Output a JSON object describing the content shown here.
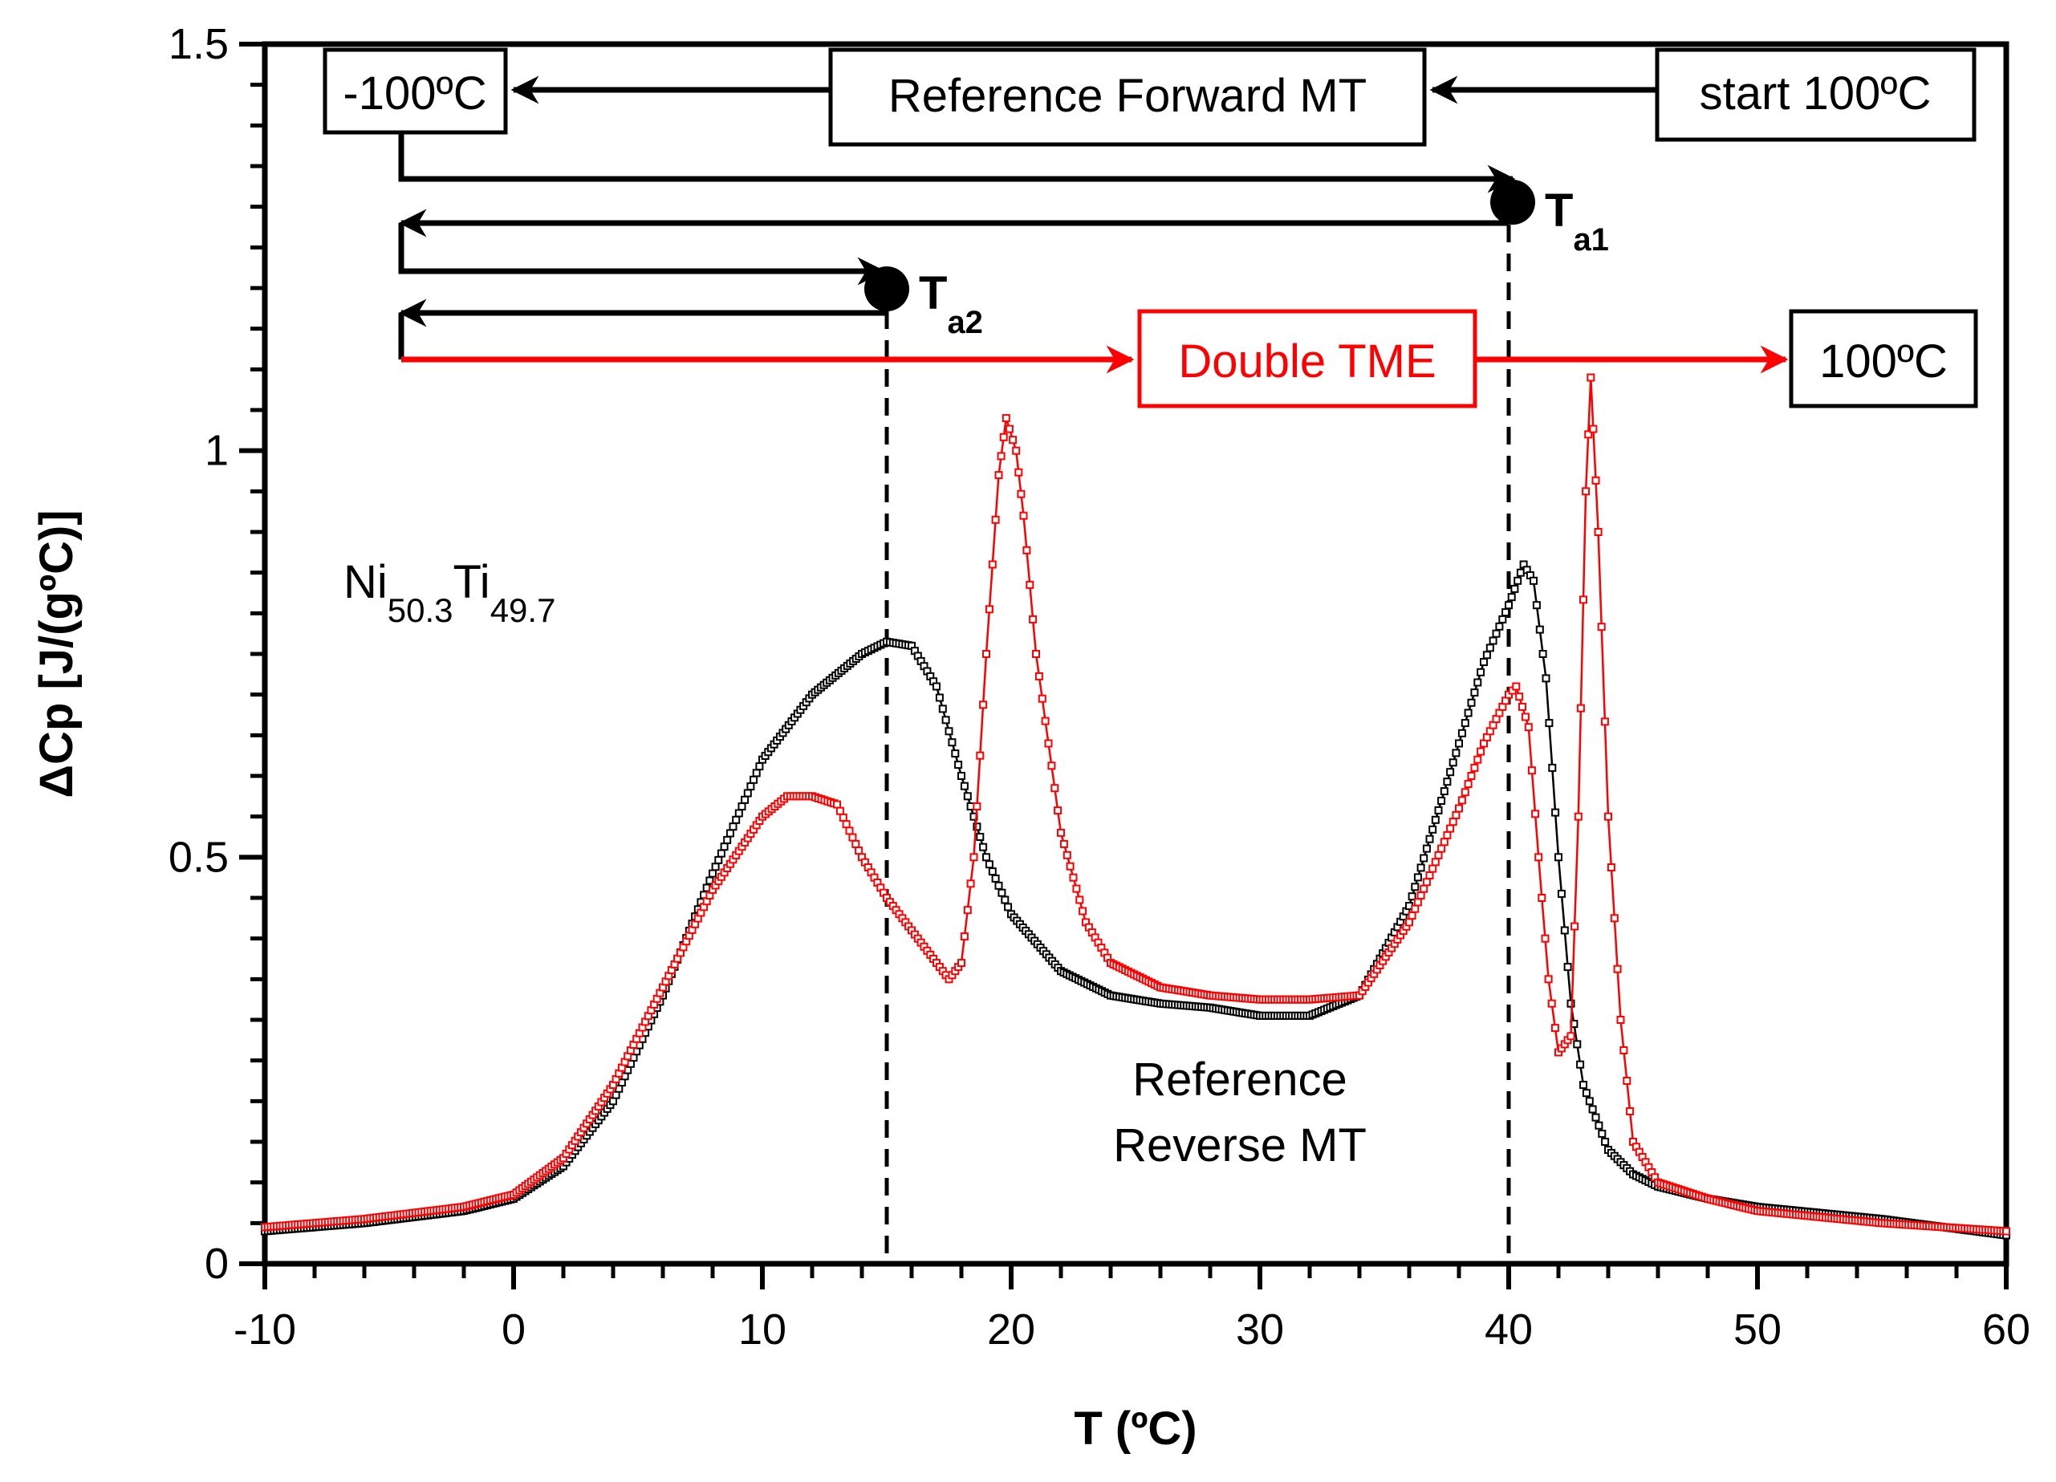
{
  "chart_data": {
    "type": "line",
    "xlabel": "T (ºC)",
    "ylabel": "ΔCp [J/(gºC)]",
    "xlim": [
      -10,
      60
    ],
    "ylim": [
      0,
      1.5
    ],
    "x_ticks": [
      -10,
      0,
      10,
      20,
      30,
      40,
      50,
      60
    ],
    "x_tick_labels": [
      "-10",
      "0",
      "10",
      "20",
      "30",
      "40",
      "50",
      "60"
    ],
    "y_ticks": [
      0,
      0.5,
      1,
      1.5
    ],
    "y_tick_labels": [
      "0",
      "0.5",
      "1",
      "1.5"
    ],
    "series": [
      {
        "name": "Reference Reverse MT",
        "color": "#000000",
        "marker": "square",
        "x": [
          -10,
          -6,
          -2,
          0,
          2,
          4,
          6,
          8,
          10,
          12,
          14,
          15,
          16,
          17,
          18,
          19,
          20,
          22,
          24,
          26,
          28,
          30,
          32,
          34,
          36,
          38,
          39,
          40,
          40.6,
          41,
          41.5,
          42,
          42.5,
          43,
          44,
          45,
          46,
          48,
          50,
          55,
          60
        ],
        "y": [
          0.04,
          0.05,
          0.065,
          0.08,
          0.12,
          0.2,
          0.33,
          0.48,
          0.62,
          0.7,
          0.75,
          0.765,
          0.76,
          0.71,
          0.6,
          0.5,
          0.43,
          0.36,
          0.33,
          0.32,
          0.315,
          0.305,
          0.305,
          0.33,
          0.44,
          0.64,
          0.74,
          0.81,
          0.86,
          0.84,
          0.72,
          0.5,
          0.32,
          0.22,
          0.14,
          0.11,
          0.095,
          0.08,
          0.07,
          0.055,
          0.035
        ]
      },
      {
        "name": "Double TME",
        "color": "#ff0000",
        "marker": "square",
        "x": [
          -10,
          -6,
          -2,
          0,
          2,
          4,
          6,
          8,
          10,
          11,
          12,
          13,
          14,
          15,
          16,
          17,
          17.5,
          18,
          18.5,
          19,
          19.5,
          19.8,
          20.2,
          20.5,
          21,
          22,
          23,
          24,
          26,
          28,
          30,
          32,
          34,
          36,
          38,
          39,
          40,
          40.3,
          40.8,
          41.2,
          41.6,
          42,
          42.5,
          42.8,
          43.1,
          43.3,
          43.6,
          44,
          44.5,
          45,
          46,
          48,
          50,
          55,
          60
        ],
        "y": [
          0.045,
          0.055,
          0.07,
          0.085,
          0.13,
          0.22,
          0.34,
          0.46,
          0.55,
          0.575,
          0.575,
          0.565,
          0.5,
          0.45,
          0.41,
          0.37,
          0.35,
          0.37,
          0.5,
          0.75,
          0.97,
          1.04,
          1.0,
          0.92,
          0.75,
          0.53,
          0.42,
          0.37,
          0.34,
          0.33,
          0.325,
          0.325,
          0.33,
          0.42,
          0.56,
          0.64,
          0.7,
          0.71,
          0.66,
          0.5,
          0.35,
          0.26,
          0.28,
          0.55,
          0.95,
          1.09,
          0.9,
          0.55,
          0.3,
          0.15,
          0.1,
          0.08,
          0.065,
          0.05,
          0.04
        ]
      }
    ],
    "vertical_markers": [
      {
        "name": "Ta2",
        "x": 15
      },
      {
        "name": "Ta1",
        "x": 40
      }
    ],
    "annotations": {
      "composition": {
        "base1": "Ni",
        "sub1": "50.3",
        "base2": "Ti",
        "sub2": "49.7"
      },
      "reference_reverse": [
        "Reference",
        "Reverse MT"
      ],
      "boxes": {
        "minus100": "-100ºC",
        "ref_forward": "Reference Forward MT",
        "start": "start 100ºC",
        "double_tme": "Double TME",
        "plus100": "100ºC"
      },
      "ta1": {
        "main": "T",
        "sub": "a1"
      },
      "ta2": {
        "main": "T",
        "sub": "a2"
      }
    }
  }
}
